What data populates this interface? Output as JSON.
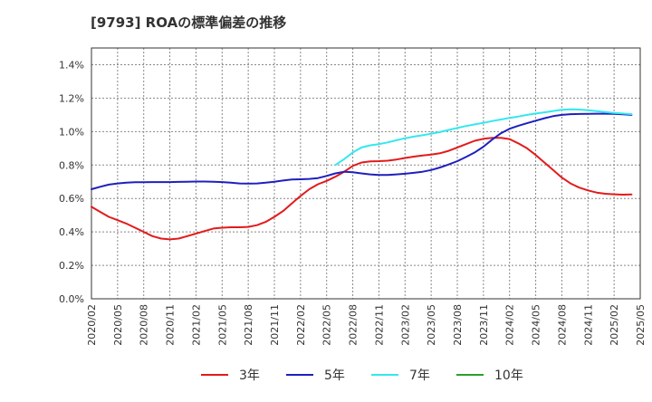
{
  "chart_data": {
    "type": "line",
    "title": "[9793]  ROAの標準偏差の推移",
    "xlabel": "",
    "ylabel": "",
    "ylim": [
      0,
      1.5
    ],
    "yticks": [
      0,
      0.2,
      0.4,
      0.6,
      0.8,
      1.0,
      1.2,
      1.4
    ],
    "ytick_labels": [
      "0.0%",
      "0.2%",
      "0.4%",
      "0.6%",
      "0.8%",
      "1.0%",
      "1.2%",
      "1.4%"
    ],
    "xtick_labels": [
      "2020/02",
      "2020/05",
      "2020/08",
      "2020/11",
      "2021/02",
      "2021/05",
      "2021/08",
      "2021/11",
      "2022/02",
      "2022/05",
      "2022/08",
      "2022/11",
      "2023/02",
      "2023/05",
      "2023/08",
      "2023/11",
      "2024/02",
      "2024/05",
      "2024/08",
      "2024/11",
      "2025/02",
      "2025/05"
    ],
    "grid": true,
    "legend_position": "bottom",
    "series": [
      {
        "name": "3年",
        "color": "#e31a1c",
        "values": [
          0.55,
          0.52,
          0.49,
          0.47,
          0.45,
          0.425,
          0.4,
          0.375,
          0.36,
          0.355,
          0.36,
          0.375,
          0.39,
          0.405,
          0.42,
          0.425,
          0.428,
          0.428,
          0.43,
          0.44,
          0.46,
          0.49,
          0.525,
          0.57,
          0.615,
          0.655,
          0.685,
          0.705,
          0.73,
          0.76,
          0.795,
          0.815,
          0.822,
          0.823,
          0.826,
          0.833,
          0.842,
          0.85,
          0.857,
          0.862,
          0.87,
          0.885,
          0.905,
          0.925,
          0.945,
          0.957,
          0.963,
          0.963,
          0.955,
          0.93,
          0.9,
          0.86,
          0.815,
          0.77,
          0.725,
          0.69,
          0.665,
          0.648,
          0.635,
          0.628,
          0.625,
          0.623,
          0.624
        ]
      },
      {
        "name": "5年",
        "color": "#1f1fbf",
        "values": [
          0.655,
          0.67,
          0.683,
          0.69,
          0.695,
          0.697,
          0.697,
          0.698,
          0.698,
          0.698,
          0.699,
          0.7,
          0.701,
          0.701,
          0.7,
          0.698,
          0.694,
          0.69,
          0.689,
          0.69,
          0.694,
          0.7,
          0.707,
          0.713,
          0.715,
          0.717,
          0.722,
          0.735,
          0.75,
          0.76,
          0.757,
          0.75,
          0.744,
          0.741,
          0.741,
          0.744,
          0.748,
          0.753,
          0.76,
          0.77,
          0.785,
          0.803,
          0.823,
          0.848,
          0.875,
          0.91,
          0.952,
          0.99,
          1.017,
          1.035,
          1.05,
          1.065,
          1.08,
          1.092,
          1.1,
          1.104,
          1.105,
          1.106,
          1.107,
          1.107,
          1.106,
          1.103,
          1.1
        ]
      },
      {
        "name": "7年",
        "color": "#33e8ee",
        "values": [
          null,
          null,
          null,
          null,
          null,
          null,
          null,
          null,
          null,
          null,
          null,
          null,
          null,
          null,
          null,
          null,
          null,
          null,
          null,
          null,
          null,
          null,
          null,
          null,
          null,
          null,
          null,
          null,
          0.8,
          0.835,
          0.875,
          0.905,
          0.918,
          0.925,
          0.935,
          0.948,
          0.96,
          0.97,
          0.978,
          0.987,
          0.997,
          1.01,
          1.022,
          1.033,
          1.043,
          1.052,
          1.063,
          1.072,
          1.082,
          1.09,
          1.1,
          1.108,
          1.115,
          1.123,
          1.13,
          1.133,
          1.132,
          1.128,
          1.122,
          1.117,
          1.112,
          1.108,
          1.104
        ]
      },
      {
        "name": "10年",
        "color": "#2ca02c",
        "values": []
      }
    ]
  }
}
